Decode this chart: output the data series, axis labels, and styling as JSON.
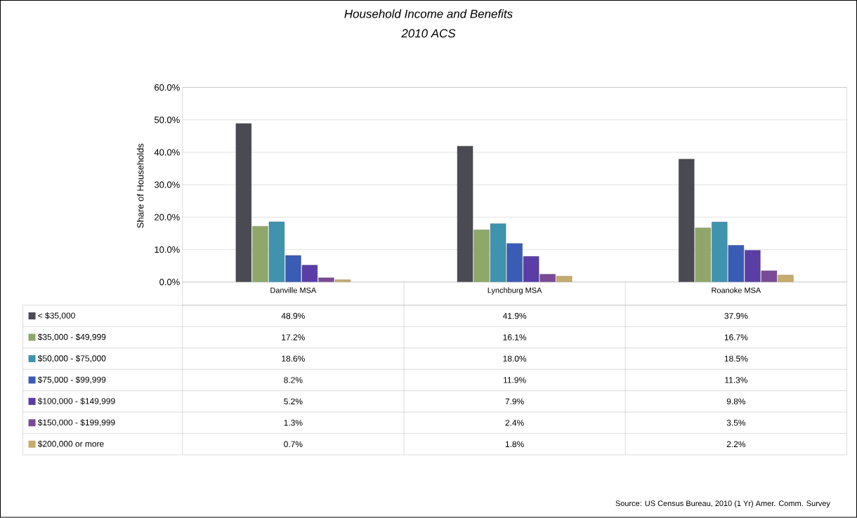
{
  "chart_data": {
    "type": "bar",
    "title": "Household Income and Benefits",
    "subtitle": "2010  ACS",
    "ylabel": "Share of Households",
    "categories": [
      "Danville MSA",
      "Lynchburg MSA",
      "Roanoke MSA"
    ],
    "series": [
      {
        "name": "< $35,000",
        "color": "#4a4a52",
        "values": [
          48.9,
          41.9,
          37.9
        ],
        "value_labels": [
          "48.9%",
          "41.9%",
          "37.9%"
        ]
      },
      {
        "name": "$35,000 - $49,999",
        "color": "#8fa86a",
        "values": [
          17.2,
          16.1,
          16.7
        ],
        "value_labels": [
          "17.2%",
          "16.1%",
          "16.7%"
        ]
      },
      {
        "name": "$50,000 - $75,000",
        "color": "#3f93ae",
        "values": [
          18.6,
          18.0,
          18.5
        ],
        "value_labels": [
          "18.6%",
          "18.0%",
          "18.5%"
        ]
      },
      {
        "name": "$75,000 - $99,999",
        "color": "#3a5cb4",
        "values": [
          8.2,
          11.9,
          11.3
        ],
        "value_labels": [
          "8.2%",
          "11.9%",
          "11.3%"
        ]
      },
      {
        "name": "$100,000 - $149,999",
        "color": "#5a3ea6",
        "values": [
          5.2,
          7.9,
          9.8
        ],
        "value_labels": [
          "5.2%",
          "7.9%",
          "9.8%"
        ]
      },
      {
        "name": "$150,000 - $199,999",
        "color": "#7a4a96",
        "values": [
          1.3,
          2.4,
          3.5
        ],
        "value_labels": [
          "1.3%",
          "2.4%",
          "3.5%"
        ]
      },
      {
        "name": "$200,000 or more",
        "color": "#c4ac6c",
        "values": [
          0.7,
          1.8,
          2.2
        ],
        "value_labels": [
          "0.7%",
          "1.8%",
          "2.2%"
        ]
      }
    ],
    "ylim": [
      0,
      60
    ],
    "yticks": [
      {
        "value": 0,
        "label": "0.0%"
      },
      {
        "value": 10,
        "label": "10.0%"
      },
      {
        "value": 20,
        "label": "20.0%"
      },
      {
        "value": 30,
        "label": "30.0%"
      },
      {
        "value": 40,
        "label": "40.0%"
      },
      {
        "value": 50,
        "label": "50.0%"
      },
      {
        "value": 60,
        "label": "60.0%"
      }
    ],
    "grid": "y",
    "legend": "left",
    "annotations": [
      "Source:  US Census Bureau, 2010  (1 Yr) Amer. Comm. Survey"
    ]
  }
}
